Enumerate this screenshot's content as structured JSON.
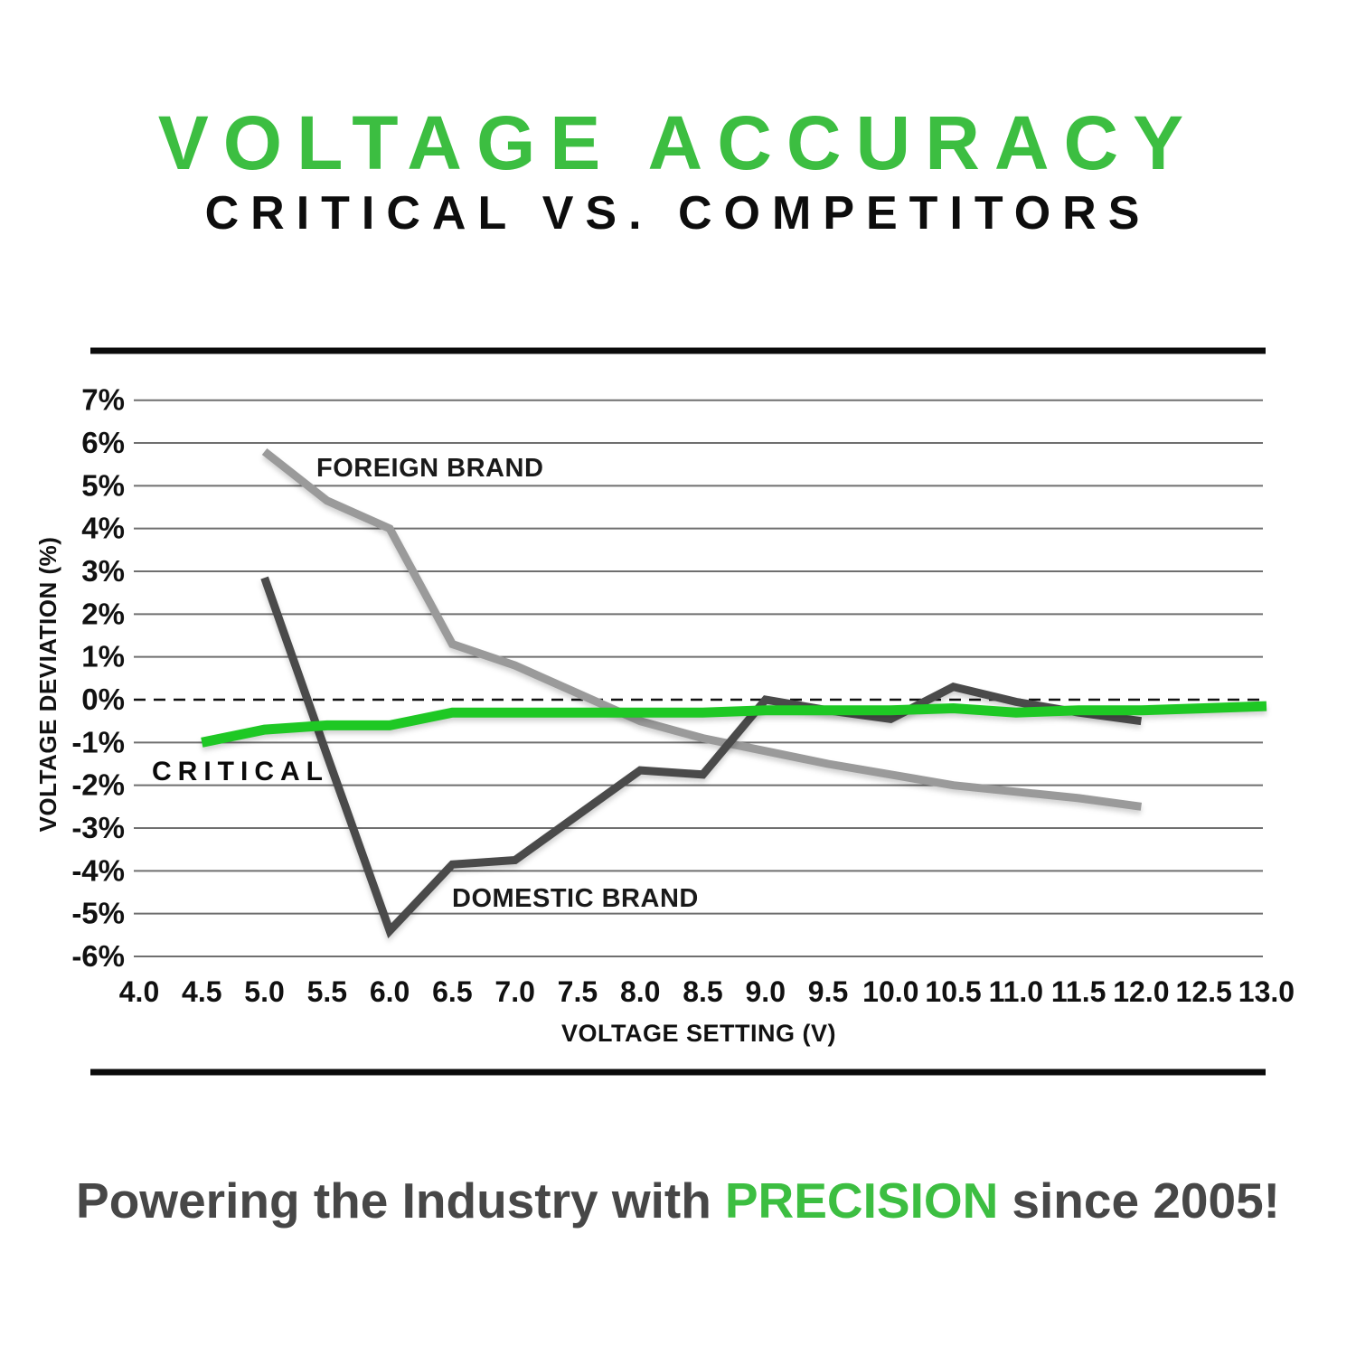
{
  "title": "VOLTAGE ACCURACY",
  "subtitle": "CRITICAL VS. COMPETITORS",
  "caption": {
    "prefix": "Powering the Industry with",
    "highlight": "PRECISION",
    "suffix": "since 2005!"
  },
  "colors": {
    "title_green": "#3cbe41",
    "caption_gray": "#474747",
    "critical_green": "#1ec824",
    "domestic_gray": "#4a4a4a",
    "foreign_gray": "#9a9a9a",
    "gridline": "#6f6f6f",
    "frame_bar": "#0b0b0b",
    "tick_text": "#111111"
  },
  "chart_data": {
    "type": "line",
    "title": "",
    "xlabel": "VOLTAGE SETTING (V)",
    "ylabel": "VOLTAGE DEVIATION (%)",
    "xlim": [
      4.0,
      13.0
    ],
    "ylim": [
      -6,
      7
    ],
    "grid": true,
    "zero_line": "dashed",
    "legend_position": "inline-labels",
    "x_ticks": [
      "4.0",
      "4.5",
      "5.0",
      "5.5",
      "6.0",
      "6.5",
      "7.0",
      "7.5",
      "8.0",
      "8.5",
      "9.0",
      "9.5",
      "10.0",
      "10.5",
      "11.0",
      "11.5",
      "12.0",
      "12.5",
      "13.0"
    ],
    "y_ticks": [
      "7%",
      "6%",
      "5%",
      "4%",
      "3%",
      "2%",
      "1%",
      "0%",
      "-1%",
      "-2%",
      "-3%",
      "-4%",
      "-5%",
      "-6%"
    ],
    "series": [
      {
        "name": "FOREIGN BRAND",
        "color": "#9a9a9a",
        "x": [
          5.0,
          5.5,
          6.0,
          6.5,
          7.0,
          7.5,
          8.0,
          8.5,
          9.0,
          9.5,
          10.0,
          10.5,
          11.0,
          11.5,
          12.0
        ],
        "values": [
          5.8,
          4.65,
          4.0,
          1.3,
          0.8,
          0.15,
          -0.5,
          -0.9,
          -1.2,
          -1.5,
          -1.75,
          -2.0,
          -2.15,
          -2.3,
          -2.5
        ]
      },
      {
        "name": "DOMESTIC BRAND",
        "color": "#4a4a4a",
        "x": [
          5.0,
          5.5,
          6.0,
          6.5,
          7.0,
          7.5,
          8.0,
          8.5,
          9.0,
          9.5,
          10.0,
          10.5,
          11.0,
          11.5,
          12.0
        ],
        "values": [
          2.85,
          -1.3,
          -5.4,
          -3.85,
          -3.75,
          -2.7,
          -1.65,
          -1.75,
          0.0,
          -0.25,
          -0.45,
          0.3,
          -0.05,
          -0.3,
          -0.5
        ]
      },
      {
        "name": "CRITICAL",
        "color": "#1ec824",
        "x": [
          4.5,
          5.0,
          5.5,
          6.0,
          6.5,
          7.0,
          7.5,
          8.0,
          8.5,
          9.0,
          9.5,
          10.0,
          10.5,
          11.0,
          11.5,
          12.0,
          12.5,
          13.0
        ],
        "values": [
          -1.0,
          -0.7,
          -0.6,
          -0.6,
          -0.3,
          -0.3,
          -0.3,
          -0.3,
          -0.3,
          -0.25,
          -0.25,
          -0.25,
          -0.2,
          -0.3,
          -0.25,
          -0.25,
          -0.2,
          -0.15
        ]
      }
    ]
  }
}
